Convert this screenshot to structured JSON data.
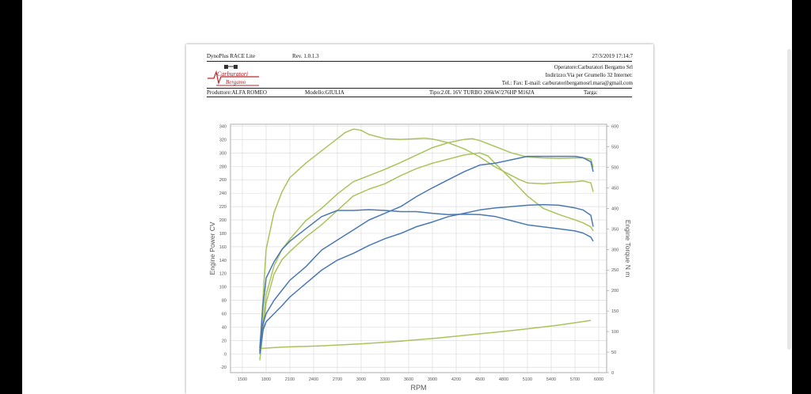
{
  "report": {
    "software": "DynoPlus RACE Lite",
    "revision": "Rev. 1.0.1.3",
    "datetime": "27/3/2019  17:14:7",
    "operator": "Operatore:Carburatori Bergamo Srl",
    "address": "Indirizzo:Via per Grumello 32   Internet:",
    "contacts": "Tel.:    Fax:    E-mail: carburatoribergamosrl.mara@gmail.com",
    "manufacturer": "Produttore:ALFA ROMEO",
    "model": "Modello:GIULIA",
    "type": "Tipo:2.0L 16V TURBO 206kW/276HP M16JA",
    "plate": "Targa:",
    "logo_line1": "Carburatori",
    "logo_line2": "Bergamo"
  },
  "colors": {
    "green": "#a8c45a",
    "blue": "#4a78b4",
    "grid": "#dddddd",
    "axis": "#888888"
  },
  "chart_data": {
    "type": "line",
    "xlabel": "RPM",
    "ylabel": "Engine Power CV",
    "y2label": "Engine Torque N m",
    "xlim": [
      1350,
      6100
    ],
    "ylim": [
      -28,
      343
    ],
    "y2lim": [
      0,
      605
    ],
    "xticks": [
      1500,
      1800,
      2100,
      2400,
      2700,
      3000,
      3300,
      3600,
      3900,
      4200,
      4500,
      4800,
      5100,
      5400,
      5700,
      6000
    ],
    "yticks": [
      -20,
      0,
      20,
      40,
      60,
      80,
      100,
      120,
      140,
      160,
      180,
      200,
      220,
      240,
      260,
      280,
      300,
      320,
      340
    ],
    "y2ticks": [
      0,
      50,
      100,
      150,
      200,
      250,
      300,
      350,
      400,
      450,
      500,
      550,
      600
    ],
    "grid": true,
    "series": [
      {
        "color": "green",
        "axis": "y2",
        "x": [
          1720,
          1760,
          1800,
          1900,
          2000,
          2100,
          2300,
          2500,
          2700,
          2800,
          2900,
          2950,
          3000,
          3100,
          3300,
          3500,
          3700,
          3800,
          3900,
          4100,
          4300,
          4500,
          4700,
          4900,
          5000,
          5100,
          5300,
          5500,
          5700,
          5800,
          5900,
          5930
        ],
        "y": [
          50,
          180,
          300,
          390,
          440,
          475,
          510,
          540,
          570,
          585,
          593,
          592,
          590,
          580,
          570,
          568,
          570,
          571,
          569,
          560,
          545,
          525,
          500,
          480,
          470,
          462,
          460,
          463,
          465,
          467,
          462,
          440
        ]
      },
      {
        "color": "green",
        "axis": "y2",
        "x": [
          1720,
          1760,
          1800,
          1900,
          2000,
          2100,
          2300,
          2500,
          2700,
          2900,
          3100,
          3300,
          3500,
          3700,
          3900,
          4100,
          4300,
          4400,
          4500,
          4700,
          4900,
          5100,
          5300,
          5500,
          5700,
          5800,
          5900,
          5930
        ],
        "y": [
          50,
          120,
          190,
          260,
          300,
          325,
          370,
          400,
          435,
          465,
          480,
          495,
          512,
          530,
          548,
          560,
          568,
          570,
          565,
          550,
          535,
          525,
          523,
          522,
          523,
          523,
          520,
          500
        ]
      },
      {
        "color": "green",
        "axis": "y2",
        "x": [
          1720,
          1760,
          1800,
          1900,
          2000,
          2100,
          2300,
          2500,
          2700,
          2900,
          3100,
          3300,
          3500,
          3700,
          3900,
          4100,
          4300,
          4500,
          4600,
          4700,
          4900,
          5100,
          5300,
          5500,
          5700,
          5800,
          5900,
          5930
        ],
        "y": [
          30,
          100,
          170,
          240,
          275,
          295,
          330,
          360,
          395,
          430,
          447,
          460,
          480,
          497,
          510,
          520,
          530,
          535,
          528,
          508,
          470,
          430,
          400,
          385,
          372,
          365,
          355,
          345
        ]
      },
      {
        "color": "green",
        "axis": "y",
        "x": [
          1720,
          2000,
          2500,
          3000,
          3500,
          4000,
          4500,
          5000,
          5500,
          5900
        ],
        "y": [
          8,
          10,
          12,
          15,
          19,
          24,
          30,
          36,
          43,
          50
        ]
      },
      {
        "color": "blue",
        "axis": "y2",
        "x": [
          1720,
          1760,
          1800,
          1900,
          2000,
          2100,
          2300,
          2500,
          2700,
          2900,
          3100,
          3300,
          3500,
          3700,
          3900,
          4100,
          4300,
          4500,
          4700,
          4900,
          5100,
          5300,
          5500,
          5700,
          5800,
          5900,
          5930
        ],
        "y": [
          60,
          160,
          230,
          270,
          300,
          320,
          350,
          380,
          395,
          395,
          397,
          395,
          392,
          392,
          388,
          385,
          386,
          385,
          380,
          370,
          360,
          355,
          350,
          345,
          340,
          330,
          320
        ]
      },
      {
        "color": "blue",
        "axis": "y",
        "x": [
          1720,
          1760,
          1800,
          1900,
          2000,
          2100,
          2300,
          2500,
          2700,
          2900,
          3100,
          3300,
          3500,
          3700,
          3900,
          4100,
          4300,
          4500,
          4700,
          4900,
          5100,
          5300,
          5500,
          5700,
          5800,
          5900,
          5930
        ],
        "y": [
          5,
          45,
          60,
          80,
          95,
          110,
          130,
          155,
          170,
          185,
          200,
          210,
          220,
          235,
          248,
          260,
          272,
          282,
          285,
          290,
          295,
          295,
          295,
          295,
          293,
          287,
          272
        ]
      },
      {
        "color": "blue",
        "axis": "y",
        "x": [
          1720,
          1760,
          1800,
          1900,
          2000,
          2100,
          2300,
          2500,
          2700,
          2900,
          3100,
          3300,
          3500,
          3700,
          3900,
          4100,
          4300,
          4500,
          4700,
          4900,
          5100,
          5300,
          5500,
          5700,
          5800,
          5900,
          5930
        ],
        "y": [
          0,
          35,
          48,
          60,
          72,
          85,
          105,
          125,
          140,
          150,
          162,
          172,
          180,
          190,
          197,
          205,
          210,
          215,
          218,
          220,
          222,
          223,
          222,
          218,
          215,
          207,
          190
        ]
      }
    ]
  }
}
